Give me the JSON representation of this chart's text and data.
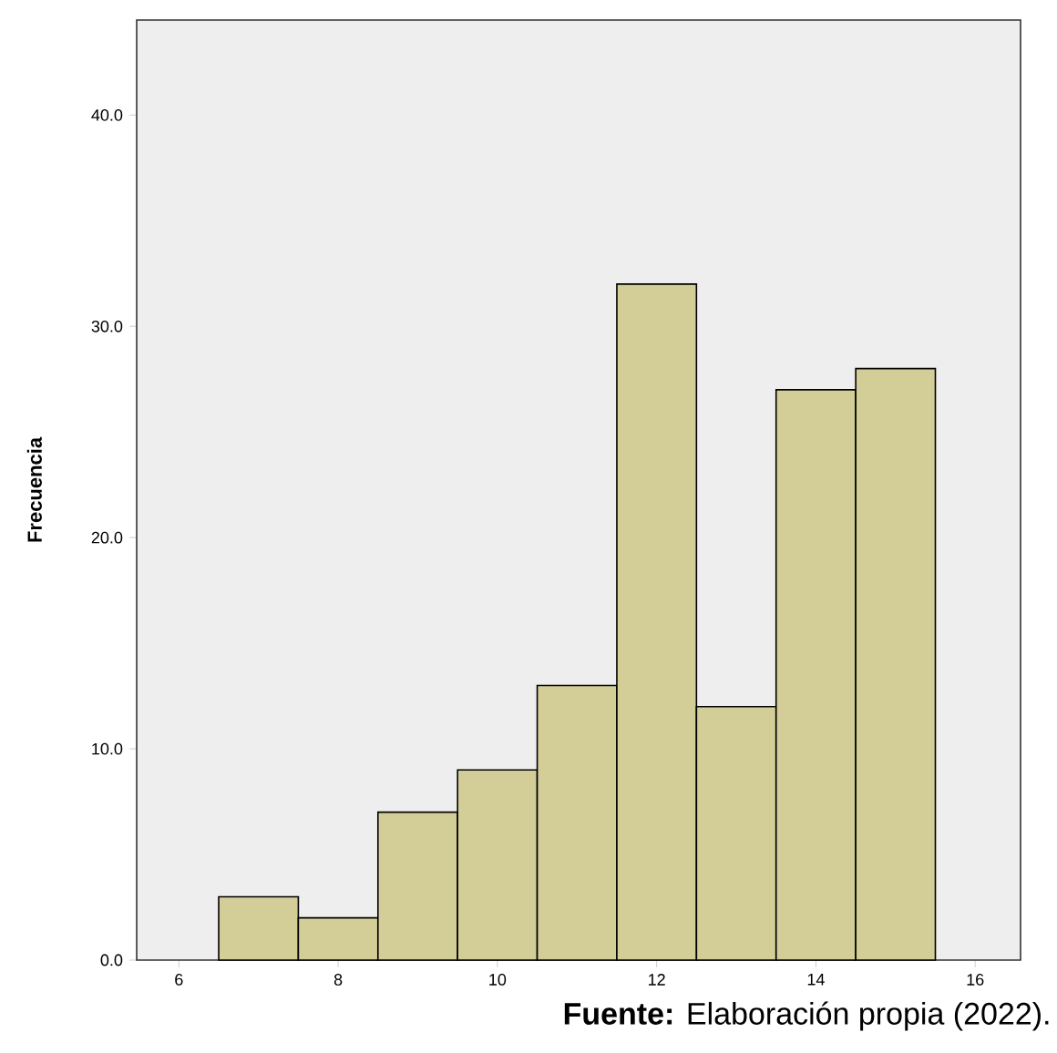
{
  "chart_data": {
    "type": "histogram",
    "ylabel": "Frecuencia",
    "bins": [
      6.5,
      7.5,
      8.5,
      9.5,
      10.5,
      11.5,
      12.5,
      13.5,
      14.5,
      15.5
    ],
    "values": [
      3,
      2,
      7,
      9,
      13,
      32,
      12,
      27,
      28
    ],
    "color": "#d3ce97",
    "xlim": [
      5.47,
      16.57
    ],
    "ylim": [
      0,
      44.5
    ],
    "xticks": [
      6,
      8,
      10,
      12,
      14,
      16
    ],
    "yticks": [
      {
        "value": 0,
        "label": "0.0"
      },
      {
        "value": 10,
        "label": "10.0"
      },
      {
        "value": 20,
        "label": "20.0"
      },
      {
        "value": 30,
        "label": "30.0"
      },
      {
        "value": 40,
        "label": "40.0"
      }
    ],
    "annotations": [
      "**Fuente:** Elaboración propia (2022)."
    ]
  }
}
